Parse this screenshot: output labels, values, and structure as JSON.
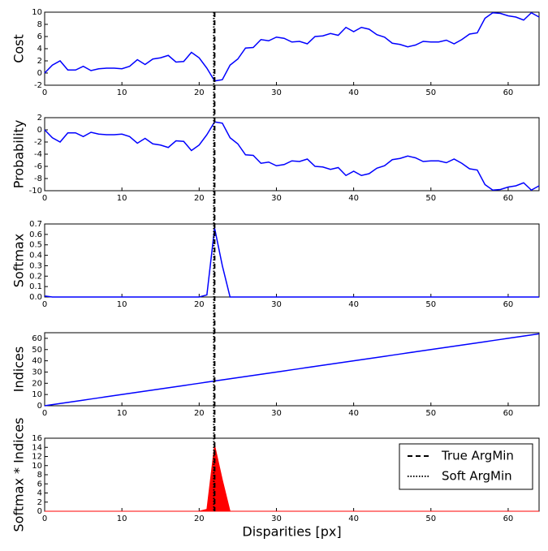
{
  "chart_data": [
    {
      "type": "line",
      "ylabel": "Cost",
      "color": "#0000ff",
      "x": [
        0,
        1,
        2,
        3,
        4,
        5,
        6,
        7,
        8,
        9,
        10,
        11,
        12,
        13,
        14,
        15,
        16,
        17,
        18,
        19,
        20,
        21,
        22,
        23,
        24,
        25,
        26,
        27,
        28,
        29,
        30,
        31,
        32,
        33,
        34,
        35,
        36,
        37,
        38,
        39,
        40,
        41,
        42,
        43,
        44,
        45,
        46,
        47,
        48,
        49,
        50,
        51,
        52,
        53,
        54,
        55,
        56,
        57,
        58,
        59,
        60,
        61,
        62,
        63,
        64
      ],
      "values": [
        0,
        1.3,
        2,
        0.5,
        0.5,
        1.1,
        0.4,
        0.7,
        0.8,
        0.8,
        0.7,
        1.1,
        2.2,
        1.4,
        2.3,
        2.5,
        2.9,
        1.8,
        1.9,
        3.4,
        2.5,
        0.8,
        -1.3,
        -1.1,
        1.3,
        2.3,
        4.1,
        4.2,
        5.5,
        5.3,
        5.9,
        5.7,
        5.1,
        5.2,
        4.8,
        6.0,
        6.1,
        6.5,
        6.2,
        7.5,
        6.8,
        7.5,
        7.2,
        6.3,
        5.9,
        4.9,
        4.7,
        4.3,
        4.6,
        5.2,
        5.1,
        5.1,
        5.4,
        4.8,
        5.5,
        6.4,
        6.6,
        9.0,
        9.9,
        9.8,
        9.4,
        9.2,
        8.7,
        9.9,
        9.2
      ],
      "xlim": [
        0,
        64
      ],
      "xticks": [
        0,
        10,
        20,
        30,
        40,
        50,
        60
      ],
      "ylim": [
        -2,
        10
      ],
      "yticks": [
        -2,
        0,
        2,
        4,
        6,
        8,
        10
      ]
    },
    {
      "type": "line",
      "ylabel": "Probability",
      "color": "#0000ff",
      "x": [
        0,
        1,
        2,
        3,
        4,
        5,
        6,
        7,
        8,
        9,
        10,
        11,
        12,
        13,
        14,
        15,
        16,
        17,
        18,
        19,
        20,
        21,
        22,
        23,
        24,
        25,
        26,
        27,
        28,
        29,
        30,
        31,
        32,
        33,
        34,
        35,
        36,
        37,
        38,
        39,
        40,
        41,
        42,
        43,
        44,
        45,
        46,
        47,
        48,
        49,
        50,
        51,
        52,
        53,
        54,
        55,
        56,
        57,
        58,
        59,
        60,
        61,
        62,
        63,
        64
      ],
      "values": [
        0,
        -1.3,
        -2,
        -0.5,
        -0.5,
        -1.1,
        -0.4,
        -0.7,
        -0.8,
        -0.8,
        -0.7,
        -1.1,
        -2.2,
        -1.4,
        -2.3,
        -2.5,
        -2.9,
        -1.8,
        -1.9,
        -3.4,
        -2.5,
        -0.8,
        1.3,
        1.1,
        -1.3,
        -2.3,
        -4.1,
        -4.2,
        -5.5,
        -5.3,
        -5.9,
        -5.7,
        -5.1,
        -5.2,
        -4.8,
        -6.0,
        -6.1,
        -6.5,
        -6.2,
        -7.5,
        -6.8,
        -7.5,
        -7.2,
        -6.3,
        -5.9,
        -4.9,
        -4.7,
        -4.3,
        -4.6,
        -5.2,
        -5.1,
        -5.1,
        -5.4,
        -4.8,
        -5.5,
        -6.4,
        -6.6,
        -9.0,
        -9.9,
        -9.8,
        -9.4,
        -9.2,
        -8.7,
        -9.9,
        -9.2
      ],
      "xlim": [
        0,
        64
      ],
      "xticks": [
        0,
        10,
        20,
        30,
        40,
        50,
        60
      ],
      "ylim": [
        -10,
        2
      ],
      "yticks": [
        -10,
        -8,
        -6,
        -4,
        -2,
        0,
        2
      ]
    },
    {
      "type": "line",
      "ylabel": "Softmax",
      "color": "#0000ff",
      "x": [
        0,
        1,
        2,
        3,
        4,
        5,
        6,
        7,
        8,
        9,
        10,
        11,
        12,
        13,
        14,
        15,
        16,
        17,
        18,
        19,
        20,
        21,
        22,
        23,
        24,
        25,
        26,
        27,
        28,
        29,
        30,
        31,
        32,
        33,
        34,
        35,
        36,
        37,
        38,
        39,
        40,
        41,
        42,
        43,
        44,
        45,
        46,
        47,
        48,
        49,
        50,
        51,
        52,
        53,
        54,
        55,
        56,
        57,
        58,
        59,
        60,
        61,
        62,
        63,
        64
      ],
      "values": [
        0.01,
        0,
        0,
        0,
        0,
        0,
        0,
        0,
        0,
        0,
        0,
        0,
        0,
        0,
        0,
        0,
        0,
        0,
        0,
        0,
        0,
        0.02,
        0.66,
        0.3,
        0,
        0,
        0,
        0,
        0,
        0,
        0,
        0,
        0,
        0,
        0,
        0,
        0,
        0,
        0,
        0,
        0,
        0,
        0,
        0,
        0,
        0,
        0,
        0,
        0,
        0,
        0,
        0,
        0,
        0,
        0,
        0,
        0,
        0,
        0,
        0,
        0,
        0,
        0,
        0,
        0
      ],
      "xlim": [
        0,
        64
      ],
      "xticks": [
        0,
        10,
        20,
        30,
        40,
        50,
        60
      ],
      "ylim": [
        0,
        0.7
      ],
      "yticks": [
        {
          "value": 0,
          "label": "0.0"
        },
        {
          "value": 0.1,
          "label": "0.1"
        },
        {
          "value": 0.2,
          "label": "0.2"
        },
        {
          "value": 0.3,
          "label": "0.3"
        },
        {
          "value": 0.4,
          "label": "0.4"
        },
        {
          "value": 0.5,
          "label": "0.5"
        },
        {
          "value": 0.6,
          "label": "0.6"
        },
        {
          "value": 0.7,
          "label": "0.7"
        }
      ]
    },
    {
      "type": "line",
      "ylabel": "Indices",
      "color": "#0000ff",
      "x": [
        0,
        1,
        2,
        3,
        4,
        5,
        6,
        7,
        8,
        9,
        10,
        11,
        12,
        13,
        14,
        15,
        16,
        17,
        18,
        19,
        20,
        21,
        22,
        23,
        24,
        25,
        26,
        27,
        28,
        29,
        30,
        31,
        32,
        33,
        34,
        35,
        36,
        37,
        38,
        39,
        40,
        41,
        42,
        43,
        44,
        45,
        46,
        47,
        48,
        49,
        50,
        51,
        52,
        53,
        54,
        55,
        56,
        57,
        58,
        59,
        60,
        61,
        62,
        63,
        64
      ],
      "values": [
        0,
        1,
        2,
        3,
        4,
        5,
        6,
        7,
        8,
        9,
        10,
        11,
        12,
        13,
        14,
        15,
        16,
        17,
        18,
        19,
        20,
        21,
        22,
        23,
        24,
        25,
        26,
        27,
        28,
        29,
        30,
        31,
        32,
        33,
        34,
        35,
        36,
        37,
        38,
        39,
        40,
        41,
        42,
        43,
        44,
        45,
        46,
        47,
        48,
        49,
        50,
        51,
        52,
        53,
        54,
        55,
        56,
        57,
        58,
        59,
        60,
        61,
        62,
        63,
        64
      ],
      "xlim": [
        0,
        64
      ],
      "xticks": [
        0,
        10,
        20,
        30,
        40,
        50,
        60
      ],
      "ylim": [
        0,
        65
      ],
      "yticks": [
        0,
        10,
        20,
        30,
        40,
        50,
        60
      ]
    },
    {
      "type": "area",
      "ylabel": "Softmax * Indices",
      "xlabel": "Disparities [px]",
      "color": "#ff0000",
      "x": [
        0,
        1,
        2,
        3,
        4,
        5,
        6,
        7,
        8,
        9,
        10,
        11,
        12,
        13,
        14,
        15,
        16,
        17,
        18,
        19,
        20,
        21,
        22,
        23,
        24,
        25,
        26,
        27,
        28,
        29,
        30,
        31,
        32,
        33,
        34,
        35,
        36,
        37,
        38,
        39,
        40,
        41,
        42,
        43,
        44,
        45,
        46,
        47,
        48,
        49,
        50,
        51,
        52,
        53,
        54,
        55,
        56,
        57,
        58,
        59,
        60,
        61,
        62,
        63,
        64
      ],
      "values": [
        0,
        0,
        0,
        0,
        0,
        0,
        0,
        0,
        0,
        0,
        0,
        0,
        0,
        0,
        0,
        0,
        0,
        0,
        0,
        0,
        0,
        0.42,
        14.5,
        6.9,
        0,
        0,
        0,
        0,
        0,
        0,
        0,
        0,
        0,
        0,
        0,
        0,
        0,
        0,
        0,
        0,
        0,
        0,
        0,
        0,
        0,
        0,
        0,
        0,
        0,
        0,
        0,
        0,
        0,
        0,
        0,
        0,
        0,
        0,
        0,
        0,
        0,
        0,
        0,
        0,
        0
      ],
      "xlim": [
        0,
        64
      ],
      "xticks": [
        0,
        10,
        20,
        30,
        40,
        50,
        60
      ],
      "ylim": [
        0,
        16
      ],
      "yticks": [
        0,
        2,
        4,
        6,
        8,
        10,
        12,
        14,
        16
      ],
      "markers": [
        {
          "name": "True ArgMin",
          "x": 22,
          "color": "#000000",
          "dash": "dashed"
        },
        {
          "name": "Soft ArgMin",
          "x": 21.9,
          "color": "#000000",
          "dash": "dotted"
        }
      ]
    }
  ]
}
